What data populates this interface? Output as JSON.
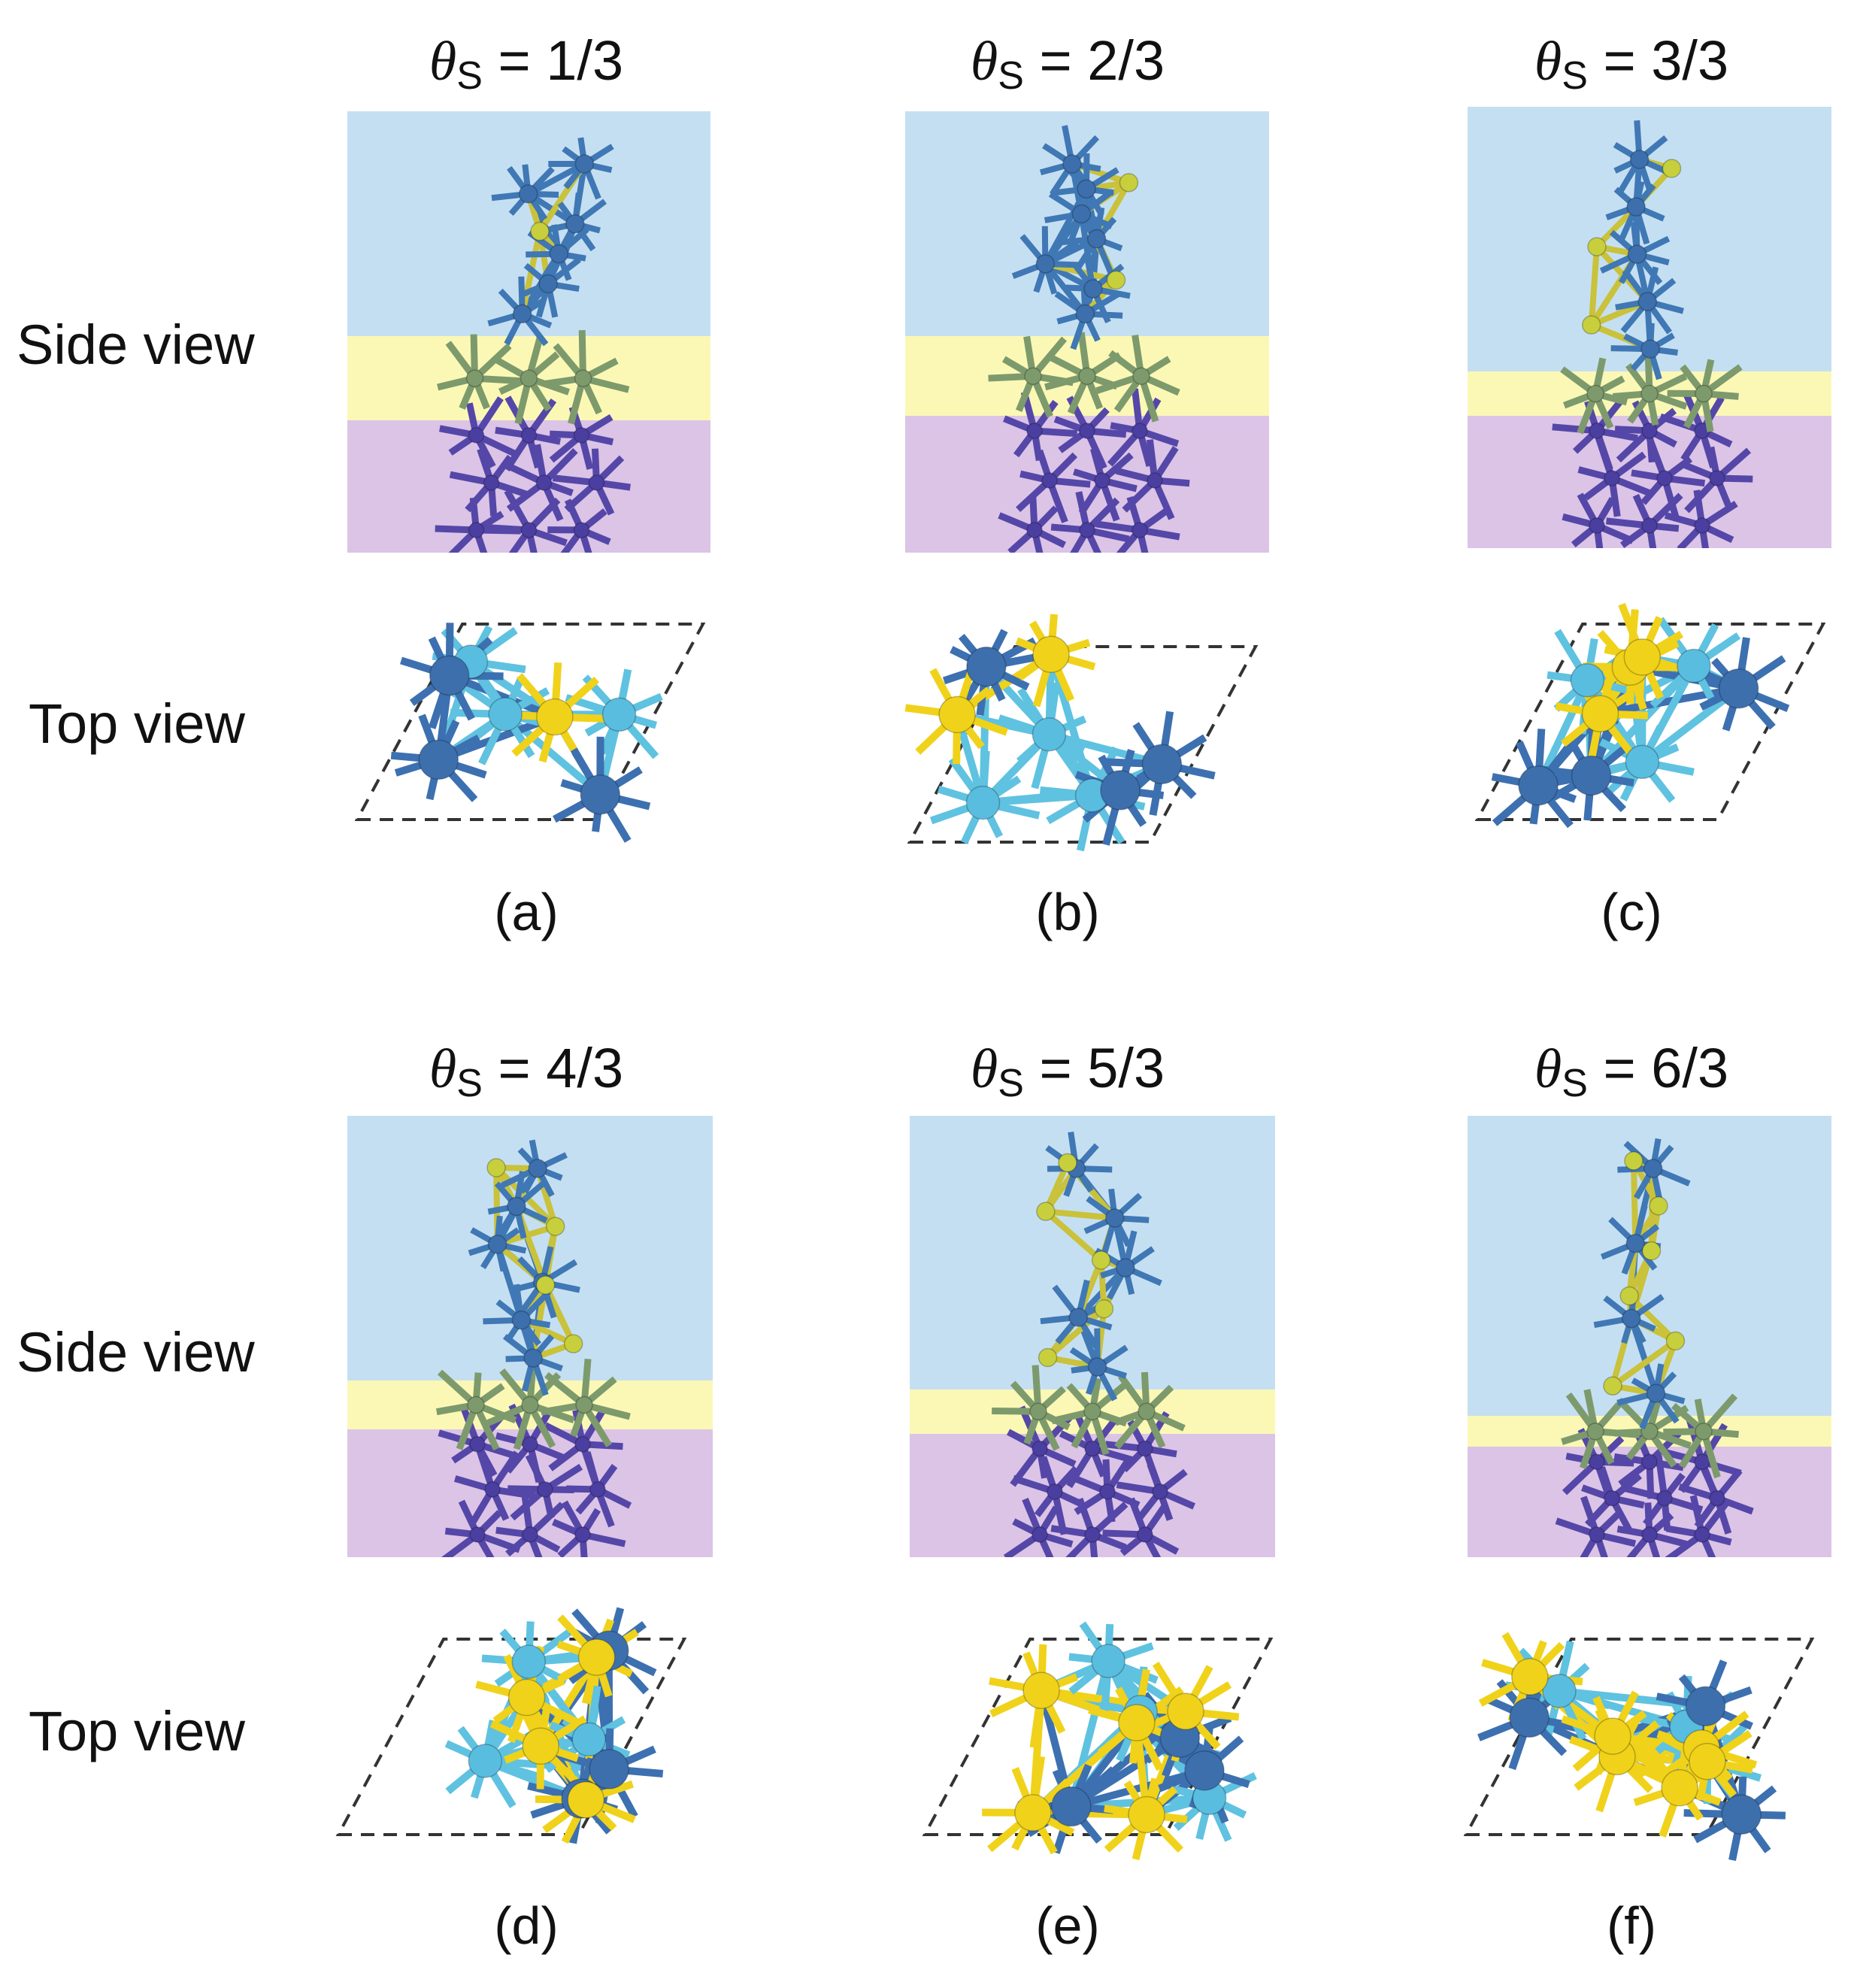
{
  "row_labels": {
    "side": "Side view",
    "top": "Top view"
  },
  "colors": {
    "vacuum": "#c5dff2",
    "interface": "#fbf8b5",
    "substrate": "#dbc4e6",
    "atom_blue": "#3d6fad",
    "atom_light": "#59bde0",
    "atom_sulfur": "#f0d21a",
    "atom_deep": "#4a3fa0",
    "atom_olive": "#7d9a6c"
  },
  "panels": [
    {
      "id": "a",
      "label": "(a)",
      "theta_symbol": "θ",
      "theta_sub": "S",
      "theta_value": "= 1/3"
    },
    {
      "id": "b",
      "label": "(b)",
      "theta_symbol": "θ",
      "theta_sub": "S",
      "theta_value": "= 2/3"
    },
    {
      "id": "c",
      "label": "(c)",
      "theta_symbol": "θ",
      "theta_sub": "S",
      "theta_value": "= 3/3"
    },
    {
      "id": "d",
      "label": "(d)",
      "theta_symbol": "θ",
      "theta_sub": "S",
      "theta_value": "= 4/3"
    },
    {
      "id": "e",
      "label": "(e)",
      "theta_symbol": "θ",
      "theta_sub": "S",
      "theta_value": "= 5/3"
    },
    {
      "id": "f",
      "label": "(f)",
      "theta_symbol": "θ",
      "theta_sub": "S",
      "theta_value": "= 6/3"
    }
  ]
}
